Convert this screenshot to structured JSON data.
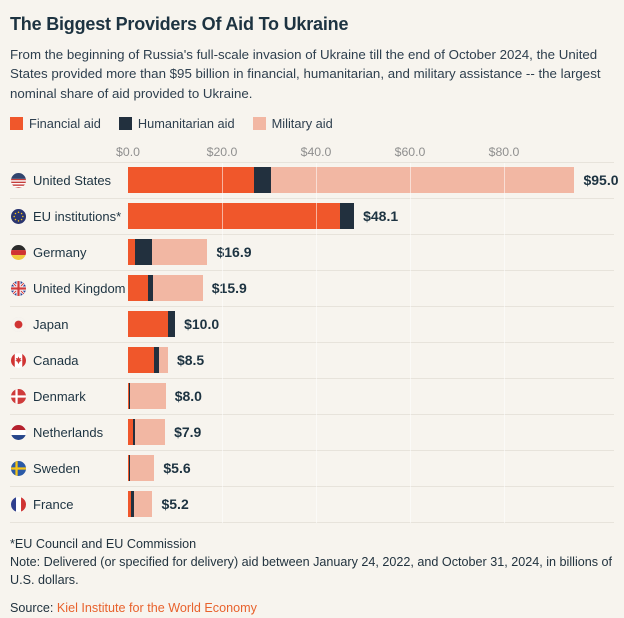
{
  "title": "The Biggest Providers Of Aid To Ukraine",
  "subtitle": "From the beginning of Russia's full-scale invasion of Ukraine till the end of October 2024, the United States provided more than $95 billion in financial, humanitarian, and military assistance -- the largest nominal share of aid provided to Ukraine.",
  "legend": [
    {
      "label": "Financial aid",
      "color": "#f0572b"
    },
    {
      "label": "Humanitarian aid",
      "color": "#22303e"
    },
    {
      "label": "Military aid",
      "color": "#f2b7a3"
    }
  ],
  "colors": {
    "background": "#f7f4ee",
    "text_dark": "#1d3341",
    "axis_gray": "#8f8f8f",
    "separator": "#e7e3db",
    "financial_aid": "#f0572b",
    "humanitarian_aid": "#22303e",
    "military_aid": "#f2b7a3",
    "source_link": "#e8622d"
  },
  "chart_data": {
    "type": "bar",
    "orientation": "horizontal",
    "stacked": true,
    "unit": "billions of U.S. dollars",
    "xlim": [
      0,
      97
    ],
    "grid": true,
    "legend_position": "top",
    "series_names": [
      "Financial aid",
      "Humanitarian aid",
      "Military aid"
    ],
    "x_axis": {
      "ticks": [
        "$0.0",
        "$20.0",
        "$40.0",
        "$60.0",
        "$80.0"
      ],
      "values": [
        0,
        20,
        40,
        60,
        80
      ]
    },
    "categories": [
      "United States",
      "EU institutions*",
      "Germany",
      "United Kingdom",
      "Japan",
      "Canada",
      "Denmark",
      "Netherlands",
      "Sweden",
      "France"
    ],
    "rows": [
      {
        "country": "United States",
        "flag": "united-states",
        "values": [
          26.8,
          3.6,
          64.6
        ],
        "total": 95.0,
        "total_label": "$95.0"
      },
      {
        "country": "EU institutions*",
        "flag": "eu",
        "values": [
          45.1,
          3.0,
          0.0
        ],
        "total": 48.1,
        "total_label": "$48.1"
      },
      {
        "country": "Germany",
        "flag": "germany",
        "values": [
          1.5,
          3.6,
          11.8
        ],
        "total": 16.9,
        "total_label": "$16.9"
      },
      {
        "country": "United Kingdom",
        "flag": "united-kingdom",
        "values": [
          4.3,
          1.1,
          10.5
        ],
        "total": 15.9,
        "total_label": "$15.9"
      },
      {
        "country": "Japan",
        "flag": "japan",
        "values": [
          8.5,
          1.5,
          0.0
        ],
        "total": 10.0,
        "total_label": "$10.0"
      },
      {
        "country": "Canada",
        "flag": "canada",
        "values": [
          5.5,
          1.0,
          2.0
        ],
        "total": 8.5,
        "total_label": "$8.5"
      },
      {
        "country": "Denmark",
        "flag": "denmark",
        "values": [
          0.1,
          0.4,
          7.5
        ],
        "total": 8.0,
        "total_label": "$8.0"
      },
      {
        "country": "Netherlands",
        "flag": "netherlands",
        "values": [
          1.0,
          0.6,
          6.3
        ],
        "total": 7.9,
        "total_label": "$7.9"
      },
      {
        "country": "Sweden",
        "flag": "sweden",
        "values": [
          0.1,
          0.4,
          5.1
        ],
        "total": 5.6,
        "total_label": "$5.6"
      },
      {
        "country": "France",
        "flag": "france",
        "values": [
          0.7,
          0.5,
          4.0
        ],
        "total": 5.2,
        "total_label": "$5.2"
      }
    ]
  },
  "footer": {
    "footnote": "*EU Council and EU Commission",
    "note": "Note: Delivered (or specified for delivery) aid between January 24, 2022, and October 31, 2024, in billions of U.S. dollars.",
    "source_label": "Source:",
    "source_link": "Kiel Institute for the World Economy"
  }
}
